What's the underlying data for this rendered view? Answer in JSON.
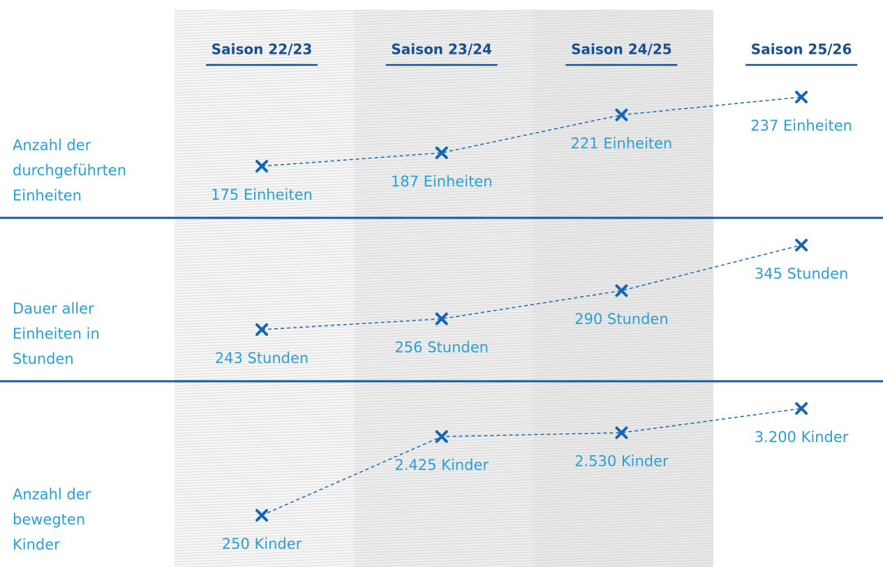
{
  "chart_data": {
    "type": "line",
    "categories": [
      "Saison 22/23",
      "Saison 23/24",
      "Saison 24/25",
      "Saison 25/26"
    ],
    "series": [
      {
        "name": "Anzahl der durchgeführten Einheiten",
        "color": "#1565b4",
        "values": [
          175,
          187,
          221,
          237
        ],
        "value_labels": [
          "175 Einheiten",
          "187 Einheiten",
          "221 Einheiten",
          "237 Einheiten"
        ]
      },
      {
        "name": "Dauer aller Einheiten in Stunden",
        "color": "#1565b4",
        "values": [
          243,
          256,
          290,
          345
        ],
        "value_labels": [
          "243 Stunden",
          "256 Stunden",
          "290 Stunden",
          "345 Stunden"
        ]
      },
      {
        "name": "Anzahl der bewegten Kinder",
        "color": "#1565b4",
        "values": [
          250,
          2425,
          2530,
          3200
        ],
        "value_labels": [
          "250 Kinder",
          "2.425 Kinder",
          "2.530 Kinder",
          "3.200 Kinder"
        ]
      }
    ]
  }
}
